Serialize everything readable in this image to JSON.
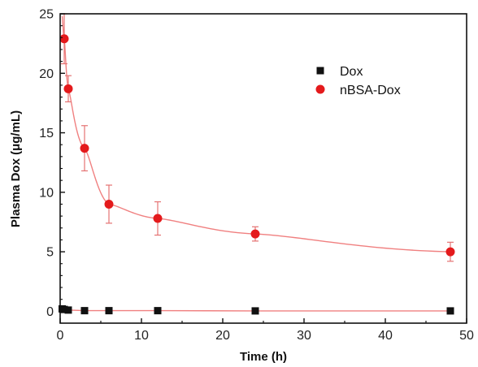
{
  "chart_data": {
    "type": "scatter",
    "title": "",
    "xlabel": "Time (h)",
    "ylabel": "Plasma Dox (μg/mL)",
    "xlim": [
      0,
      50
    ],
    "ylim": [
      -1,
      25
    ],
    "xticks": [
      0,
      10,
      20,
      30,
      40,
      50
    ],
    "yticks": [
      0,
      5,
      10,
      15,
      20,
      25
    ],
    "grid": false,
    "legend_position": "upper-right",
    "series": [
      {
        "name": "Dox",
        "marker": "square",
        "color": "#111111",
        "x": [
          0.25,
          0.5,
          1,
          3,
          6,
          12,
          24,
          48
        ],
        "y": [
          0.2,
          0.15,
          0.1,
          0.05,
          0.05,
          0.05,
          0.03,
          0.03
        ],
        "yerr": [
          0.05,
          0.05,
          0.05,
          0.02,
          0.02,
          0.02,
          0.02,
          0.02
        ]
      },
      {
        "name": "nBSA-Dox",
        "marker": "circle",
        "color": "#e41a1c",
        "x": [
          0.5,
          1,
          3,
          6,
          12,
          24,
          48
        ],
        "y": [
          22.9,
          18.7,
          13.7,
          9.0,
          7.8,
          6.5,
          5.0
        ],
        "yerr": [
          2.1,
          1.1,
          1.9,
          1.6,
          1.4,
          0.6,
          0.8
        ]
      }
    ],
    "fit_lines": [
      {
        "series": "nBSA-Dox",
        "color": "#f08080"
      },
      {
        "series": "Dox",
        "color": "#f08080"
      }
    ]
  }
}
